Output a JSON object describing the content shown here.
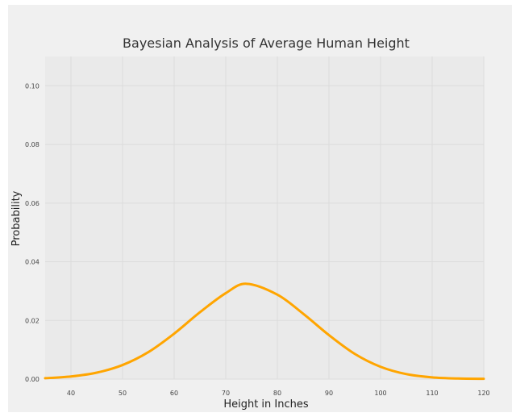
{
  "chart_data": {
    "type": "line",
    "title": "Bayesian Analysis of Average Human Height",
    "xlabel": "Height in Inches",
    "ylabel": "Probability",
    "xlim": [
      35,
      120
    ],
    "ylim": [
      0,
      0.11
    ],
    "x_ticks": [
      40,
      50,
      60,
      70,
      80,
      90,
      100,
      110,
      120
    ],
    "x_tick_labels": [
      "40",
      "50",
      "60",
      "70",
      "80",
      "90",
      "100",
      "110",
      "120"
    ],
    "y_ticks": [
      0.0,
      0.02,
      0.04,
      0.06,
      0.08,
      0.1
    ],
    "y_tick_labels": [
      "0.00",
      "0.02",
      "0.04",
      "0.06",
      "0.08",
      "0.10"
    ],
    "grid": true,
    "series": [
      {
        "color": "#FFA500",
        "x": [
          35,
          40,
          45,
          50,
          55,
          60,
          65,
          70,
          74,
          80,
          85,
          90,
          95,
          100,
          105,
          110,
          115,
          120
        ],
        "y": [
          0.0003,
          0.0009,
          0.0022,
          0.0048,
          0.0092,
          0.0155,
          0.0228,
          0.0293,
          0.0325,
          0.0288,
          0.0223,
          0.015,
          0.0086,
          0.0042,
          0.0017,
          0.0006,
          0.0002,
          0.0001
        ]
      }
    ]
  }
}
